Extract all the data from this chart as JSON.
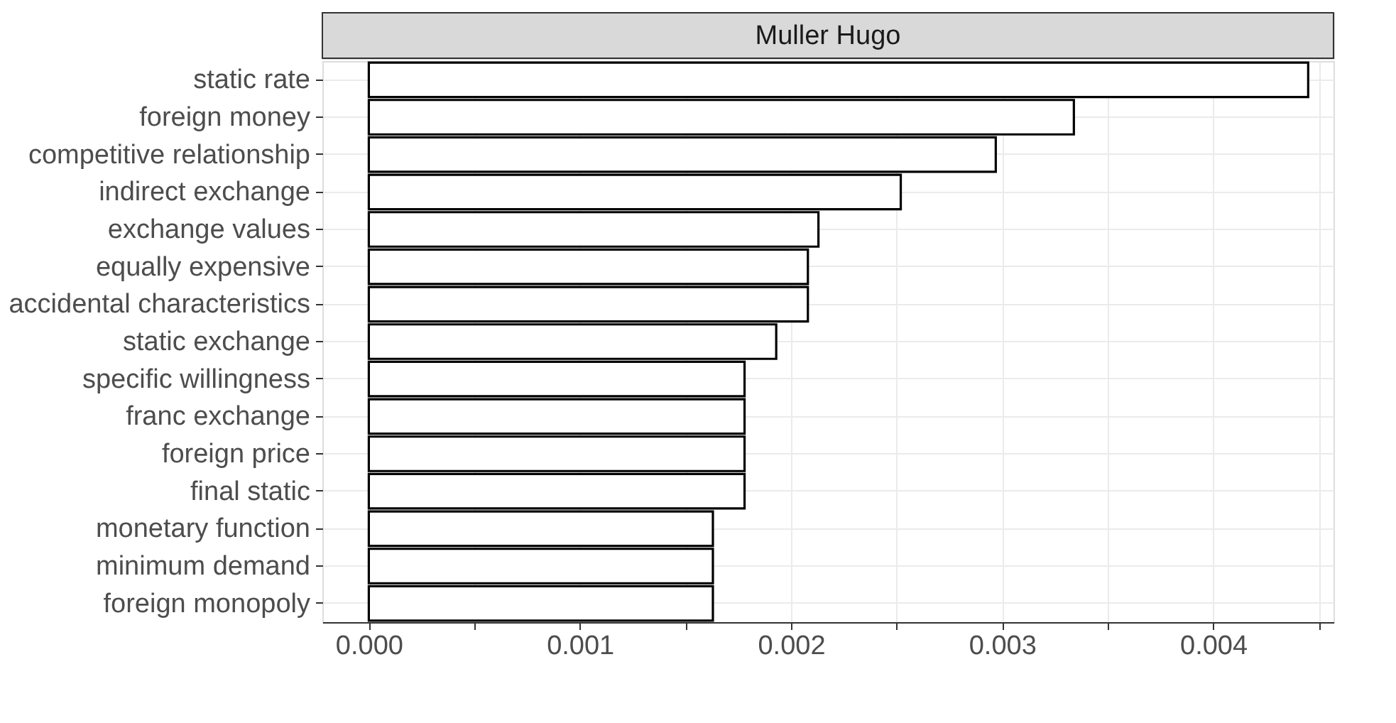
{
  "chart_data": {
    "type": "bar",
    "orientation": "horizontal",
    "title": "Muller Hugo",
    "categories": [
      "static rate",
      "foreign money",
      "competitive relationship",
      "indirect exchange",
      "exchange values",
      "equally expensive",
      "accidental characteristics",
      "static exchange",
      "specific willingness",
      "franc exchange",
      "foreign price",
      "final static",
      "monetary function",
      "minimum demand",
      "foreign monopoly"
    ],
    "values": [
      0.00445,
      0.00334,
      0.00297,
      0.00252,
      0.00213,
      0.00208,
      0.00208,
      0.00193,
      0.00178,
      0.00178,
      0.00178,
      0.00178,
      0.00163,
      0.00163,
      0.00163
    ],
    "color": "#ffffff",
    "xlim": [
      -0.00022,
      0.00457
    ],
    "xticks": [
      {
        "value": 0,
        "label": "0.000"
      },
      {
        "value": 0.0005,
        "label": null
      },
      {
        "value": 0.001,
        "label": "0.001"
      },
      {
        "value": 0.0015,
        "label": null
      },
      {
        "value": 0.002,
        "label": "0.002"
      },
      {
        "value": 0.0025,
        "label": null
      },
      {
        "value": 0.003,
        "label": "0.003"
      },
      {
        "value": 0.0035,
        "label": null
      },
      {
        "value": 0.004,
        "label": "0.004"
      },
      {
        "value": 0.0045,
        "label": null
      }
    ],
    "grid": true
  }
}
